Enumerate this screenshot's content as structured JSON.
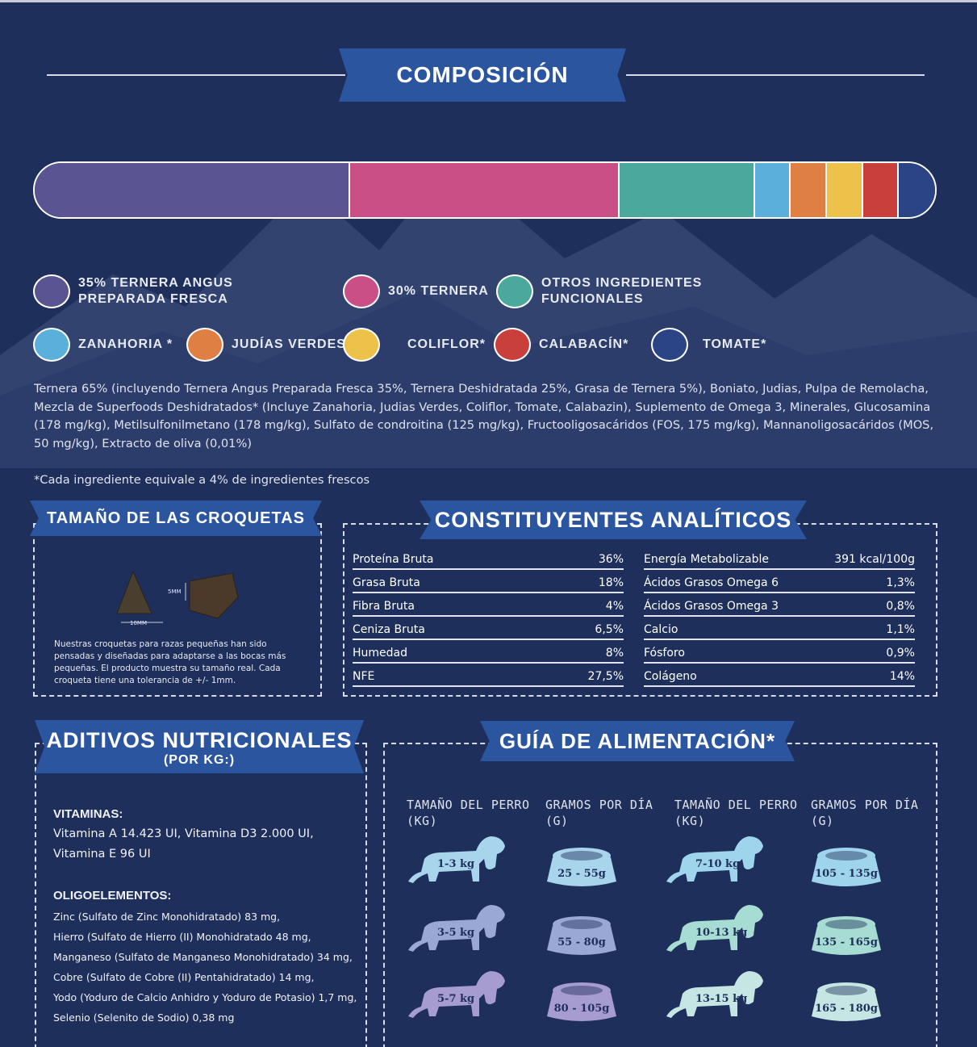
{
  "composition": {
    "title": "COMPOSICIÓN",
    "segments": [
      {
        "name": "ternera-angus",
        "percent": 35,
        "color": "#5a5493"
      },
      {
        "name": "ternera",
        "percent": 30,
        "color": "#c94f86"
      },
      {
        "name": "otros",
        "percent": 15,
        "color": "#4aa99c"
      },
      {
        "name": "zanahoria",
        "percent": 4,
        "color": "#5ab0da"
      },
      {
        "name": "judias",
        "percent": 4,
        "color": "#e07f44"
      },
      {
        "name": "coliflor",
        "percent": 4,
        "color": "#edc24a"
      },
      {
        "name": "calabacin",
        "percent": 4,
        "color": "#c93f3c"
      },
      {
        "name": "tomate",
        "percent": 4,
        "color": "#2a4485"
      }
    ],
    "legend": [
      {
        "line1": "35% TERNERA ANGUS",
        "line2": "PREPARADA FRESCA",
        "color": "#5a5493"
      },
      {
        "line1": "30% TERNERA",
        "line2": "",
        "color": "#c94f86"
      },
      {
        "line1": "OTROS INGREDIENTES",
        "line2": "FUNCIONALES",
        "color": "#4aa99c"
      },
      {
        "line1": "ZANAHORIA *",
        "line2": "",
        "color": "#5ab0da"
      },
      {
        "line1": "JUDÍAS VERDES*",
        "line2": "",
        "color": "#e07f44"
      },
      {
        "line1": "COLIFLOR*",
        "line2": "",
        "color": "#edc24a"
      },
      {
        "line1": "CALABACÍN*",
        "line2": "",
        "color": "#c93f3c"
      },
      {
        "line1": "TOMATE*",
        "line2": "",
        "color": "#2a4485"
      }
    ],
    "ingredients": "Ternera 65% (incluyendo Ternera Angus Preparada Fresca 35%, Ternera Deshidratada 25%, Grasa de Ternera 5%), Boniato, Judias, Pulpa de Remolacha, Mezcla de Superfoods Deshidratados* (Incluye Zanahoria, Judias Verdes, Coliflor, Tomate, Calabazin), Suplemento de Omega 3, Minerales, Glucosamina (178 mg/kg), Metilsulfonilmetano (178 mg/kg), Sulfato de condroitina (125 mg/kg), Fructooligosacáridos (FOS, 175 mg/kg), Mannanoligosacáridos (MOS, 50 mg/kg), Extracto de oliva (0,01%)",
    "footnote": "*Cada ingrediente equivale a 4% de ingredientes frescos"
  },
  "kibble": {
    "title": "TAMAÑO DE LAS CROQUETAS",
    "height_label": "5MM",
    "width_label": "10MM",
    "note": "Nuestras croquetas para razas pequeñas han sido pensadas y diseñadas para adaptarse a las bocas más pequeñas. El producto muestra su tamaño real. Cada croqueta tiene una tolerancia de +/- 1mm."
  },
  "analytical": {
    "title": "CONSTITUYENTES ANALÍTICOS",
    "left": [
      {
        "label": "Proteína Bruta",
        "value": "36%"
      },
      {
        "label": "Grasa Bruta",
        "value": "18%"
      },
      {
        "label": "Fibra Bruta",
        "value": "4%"
      },
      {
        "label": "Ceniza Bruta",
        "value": "6,5%"
      },
      {
        "label": "Humedad",
        "value": "8%"
      },
      {
        "label": "NFE",
        "value": "27,5%"
      }
    ],
    "right": [
      {
        "label": "Energía Metabolizable",
        "value": "391 kcal/100g"
      },
      {
        "label": "Ácidos Grasos Omega 6",
        "value": "1,3%"
      },
      {
        "label": "Ácidos Grasos Omega 3",
        "value": "0,8%"
      },
      {
        "label": "Calcio",
        "value": "1,1%"
      },
      {
        "label": "Fósforo",
        "value": "0,9%"
      },
      {
        "label": "Colágeno",
        "value": "14%"
      }
    ]
  },
  "additives": {
    "title": "ADITIVOS NUTRICIONALES",
    "subtitle": "(POR KG:)",
    "vitamins_title": "VITAMINAS:",
    "vitamins_line1": "Vitamina A 14.423 UI, Vitamina D3 2.000 UI,",
    "vitamins_line2": "Vitamina E 96 UI",
    "trace_title": "OLIGOELEMENTOS:",
    "trace": [
      "Zinc (Sulfato de Zinc Monohidratado) 83 mg,",
      "Hierro (Sulfato de Hierro (II) Monohidratado 48 mg,",
      "Manganeso (Sulfato de Manganeso Monohidratado) 34 mg,",
      "Cobre (Sulfato de Cobre (II) Pentahidratado) 14 mg,",
      "Yodo (Yoduro de Calcio Anhidro y Yoduro de Potasio) 1,7 mg,",
      "Selenio (Selenito de Sodio) 0,38 mg"
    ]
  },
  "feeding": {
    "title": "GUÍA DE ALIMENTACIÓN*",
    "headers": [
      {
        "line1": "TAMAÑO DEL PERRO",
        "line2": "(KG)"
      },
      {
        "line1": "GRAMOS POR DÍA",
        "line2": "(G)"
      },
      {
        "line1": "TAMAÑO DEL PERRO",
        "line2": "(KG)"
      },
      {
        "line1": "GRAMOS POR DÍA",
        "line2": "(G)"
      }
    ],
    "rows": [
      {
        "dog1": "1-3 kg",
        "grams1": "25 - 55g",
        "dog2": "7-10 kg",
        "grams2": "105 - 135g",
        "color1": "#a8d4ec",
        "color2": "#9fd5ec"
      },
      {
        "dog1": "3-5 kg",
        "grams1": "55 - 80g",
        "dog2": "10-13 kg",
        "grams2": "135 - 165g",
        "color1": "#9aa8d6",
        "color2": "#a6dcd2"
      },
      {
        "dog1": "5-7 kg",
        "grams1": "80 - 105g",
        "dog2": "13-15 kg",
        "grams2": "165 - 180g",
        "color1": "#a79ccf",
        "color2": "#c6e6e4"
      }
    ]
  }
}
